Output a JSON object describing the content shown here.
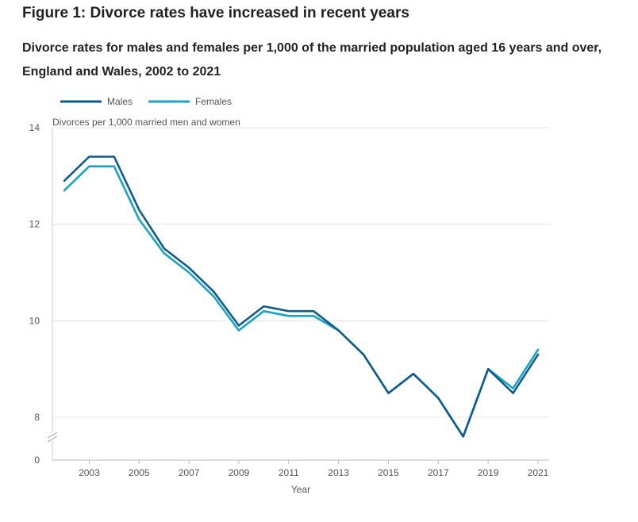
{
  "figure_title": "Figure 1: Divorce rates have increased in recent years",
  "chart_data": {
    "type": "line",
    "title": "Divorce rates for males and females per 1,000 of the married population aged 16 years and over, England and Wales, 2002 to 2021",
    "xlabel": "Year",
    "ylabel": "Divorces per 1,000 married men and women",
    "x": [
      2002,
      2003,
      2004,
      2005,
      2006,
      2007,
      2008,
      2009,
      2010,
      2011,
      2012,
      2013,
      2014,
      2015,
      2016,
      2017,
      2018,
      2019,
      2020,
      2021
    ],
    "x_ticks": [
      "2003",
      "2005",
      "2007",
      "2009",
      "2011",
      "2013",
      "2015",
      "2017",
      "2019",
      "2021"
    ],
    "y_ticks": [
      "14",
      "12",
      "10",
      "8",
      "0"
    ],
    "ylim": [
      7.1,
      14
    ],
    "axis_break": true,
    "grid": true,
    "legend_position": "top-left",
    "series": [
      {
        "name": "Males",
        "color": "#0f5b8e",
        "values": [
          12.9,
          13.4,
          13.4,
          12.3,
          11.5,
          11.1,
          10.6,
          9.9,
          10.3,
          10.2,
          10.2,
          9.8,
          9.3,
          8.5,
          8.9,
          8.4,
          7.6,
          9.0,
          8.5,
          9.3
        ]
      },
      {
        "name": "Females",
        "color": "#1ba3c6",
        "values": [
          12.7,
          13.2,
          13.2,
          12.1,
          11.4,
          11.0,
          10.5,
          9.8,
          10.2,
          10.1,
          10.1,
          9.8,
          9.3,
          8.5,
          8.9,
          8.4,
          7.6,
          9.0,
          8.6,
          9.4
        ]
      }
    ]
  }
}
